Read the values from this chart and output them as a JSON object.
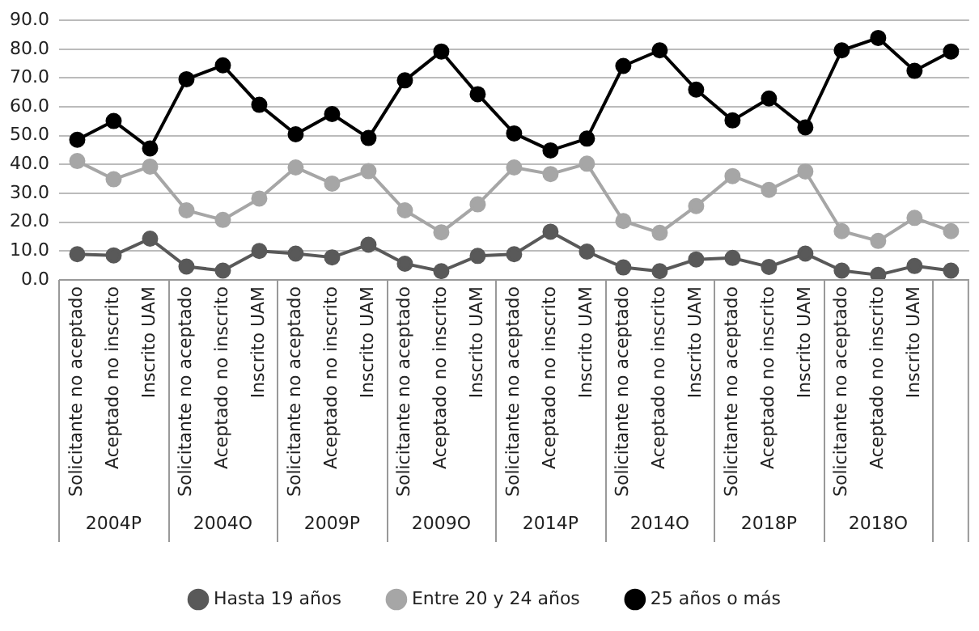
{
  "chart_data": {
    "type": "line",
    "categories": [
      "Solicitante no aceptado",
      "Aceptado no inscrito",
      "Inscrito UAM",
      "Solicitante no aceptado",
      "Aceptado no inscrito",
      "Inscrito UAM",
      "Solicitante no aceptado",
      "Aceptado no inscrito",
      "Inscrito UAM",
      "Solicitante no aceptado",
      "Aceptado no inscrito",
      "Inscrito UAM",
      "Solicitante no aceptado",
      "Aceptado no inscrito",
      "Inscrito UAM",
      "Solicitante no aceptado",
      "Aceptado no inscrito",
      "Inscrito UAM",
      "Solicitante no aceptado",
      "Aceptado no inscrito",
      "Inscrito UAM",
      "Solicitante no aceptado",
      "Aceptado no inscrito",
      "Inscrito UAM",
      null
    ],
    "annotations": [
      "2004P",
      "2004O",
      "2009P",
      "2009O",
      "2014P",
      "2014O",
      "2018P",
      "2018O"
    ],
    "series": [
      {
        "name": "Hasta 19 años",
        "color": "#595959",
        "values": [
          8.9,
          8.5,
          14.3,
          4.6,
          3.2,
          10.0,
          9.1,
          7.8,
          12.2,
          5.6,
          3.0,
          8.3,
          8.9,
          16.7,
          9.8,
          4.3,
          3.0,
          7.1,
          7.6,
          4.5,
          9.1,
          3.2,
          1.7,
          4.8,
          3.2
        ]
      },
      {
        "name": "Entre 20 y 24 años",
        "color": "#a6a6a6",
        "values": [
          41.2,
          34.9,
          39.3,
          24.1,
          20.8,
          28.2,
          39.0,
          33.4,
          37.7,
          24.1,
          16.5,
          26.2,
          39.0,
          36.7,
          40.3,
          20.4,
          16.3,
          25.6,
          36.0,
          31.2,
          37.6,
          16.9,
          13.5,
          21.5,
          16.9
        ]
      },
      {
        "name": "25 años o más",
        "color": "#000000",
        "values": [
          48.6,
          55.1,
          45.6,
          69.6,
          74.4,
          60.7,
          50.5,
          57.5,
          49.2,
          69.2,
          79.2,
          64.4,
          50.8,
          44.9,
          49.0,
          74.2,
          79.6,
          66.0,
          55.3,
          62.9,
          52.9,
          79.6,
          83.9,
          72.5,
          79.2
        ]
      }
    ],
    "ylim": [
      0,
      90
    ],
    "yticks": [
      {
        "value": 0,
        "label": "0.0"
      },
      {
        "value": 10,
        "label": "10.0"
      },
      {
        "value": 20,
        "label": "20.0"
      },
      {
        "value": 30,
        "label": "30.0"
      },
      {
        "value": 40,
        "label": "40.0"
      },
      {
        "value": 50,
        "label": "50.0"
      },
      {
        "value": 60,
        "label": "60.0"
      },
      {
        "value": 70,
        "label": "70.0"
      },
      {
        "value": 80,
        "label": "80.0"
      },
      {
        "value": 90,
        "label": "90.0"
      }
    ],
    "grid": "y",
    "legend": "bottom",
    "marker": "circle",
    "line_style": "solid"
  }
}
